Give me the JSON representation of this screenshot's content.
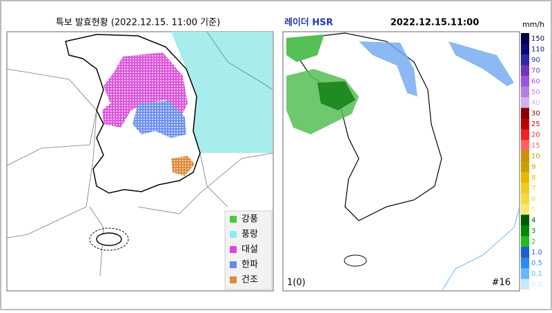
{
  "warning_panel": {
    "title": "특보 발효현황 (2022.12.15. 11:00 기준)",
    "legend": [
      {
        "label": "강풍",
        "color": "#44cc44"
      },
      {
        "label": "풍랑",
        "color": "#88eeee"
      },
      {
        "label": "대설",
        "color": "#dd44dd"
      },
      {
        "label": "한파",
        "color": "#6688ee"
      },
      {
        "label": "건조",
        "color": "#e08a3c"
      }
    ]
  },
  "radar_panel": {
    "title": "레이더 HSR",
    "time": "2022.12.15.11:00",
    "unit": "mm/h",
    "scale": [
      {
        "label": "150",
        "color": "#000044"
      },
      {
        "label": "110",
        "color": "#0a0a7a"
      },
      {
        "label": "90",
        "color": "#2a2aa8"
      },
      {
        "label": "70",
        "color": "#7733bb"
      },
      {
        "label": "60",
        "color": "#9955dd"
      },
      {
        "label": "50",
        "color": "#b37ee6"
      },
      {
        "label": "40",
        "color": "#d2b0f2"
      },
      {
        "label": "30",
        "color": "#8a0000"
      },
      {
        "label": "25",
        "color": "#c00000"
      },
      {
        "label": "20",
        "color": "#ee2222"
      },
      {
        "label": "15",
        "color": "#ff6060"
      },
      {
        "label": "10",
        "color": "#d09000"
      },
      {
        "label": "9",
        "color": "#c8a000"
      },
      {
        "label": "8",
        "color": "#e8b800"
      },
      {
        "label": "7",
        "color": "#f0cc20"
      },
      {
        "label": "6",
        "color": "#f4dc40"
      },
      {
        "label": "5",
        "color": "#f8ea70"
      },
      {
        "label": "4",
        "color": "#005a00"
      },
      {
        "label": "3",
        "color": "#008a00"
      },
      {
        "label": "2",
        "color": "#22bb22"
      },
      {
        "label": "1.0",
        "color": "#1e5ed0"
      },
      {
        "label": "0.5",
        "color": "#2a8af0"
      },
      {
        "label": "0.1",
        "color": "#66b8ff"
      },
      {
        "label": "0.0",
        "color": "#c8e8ff"
      }
    ],
    "footer_left": "1(0)",
    "footer_right": "#16"
  }
}
